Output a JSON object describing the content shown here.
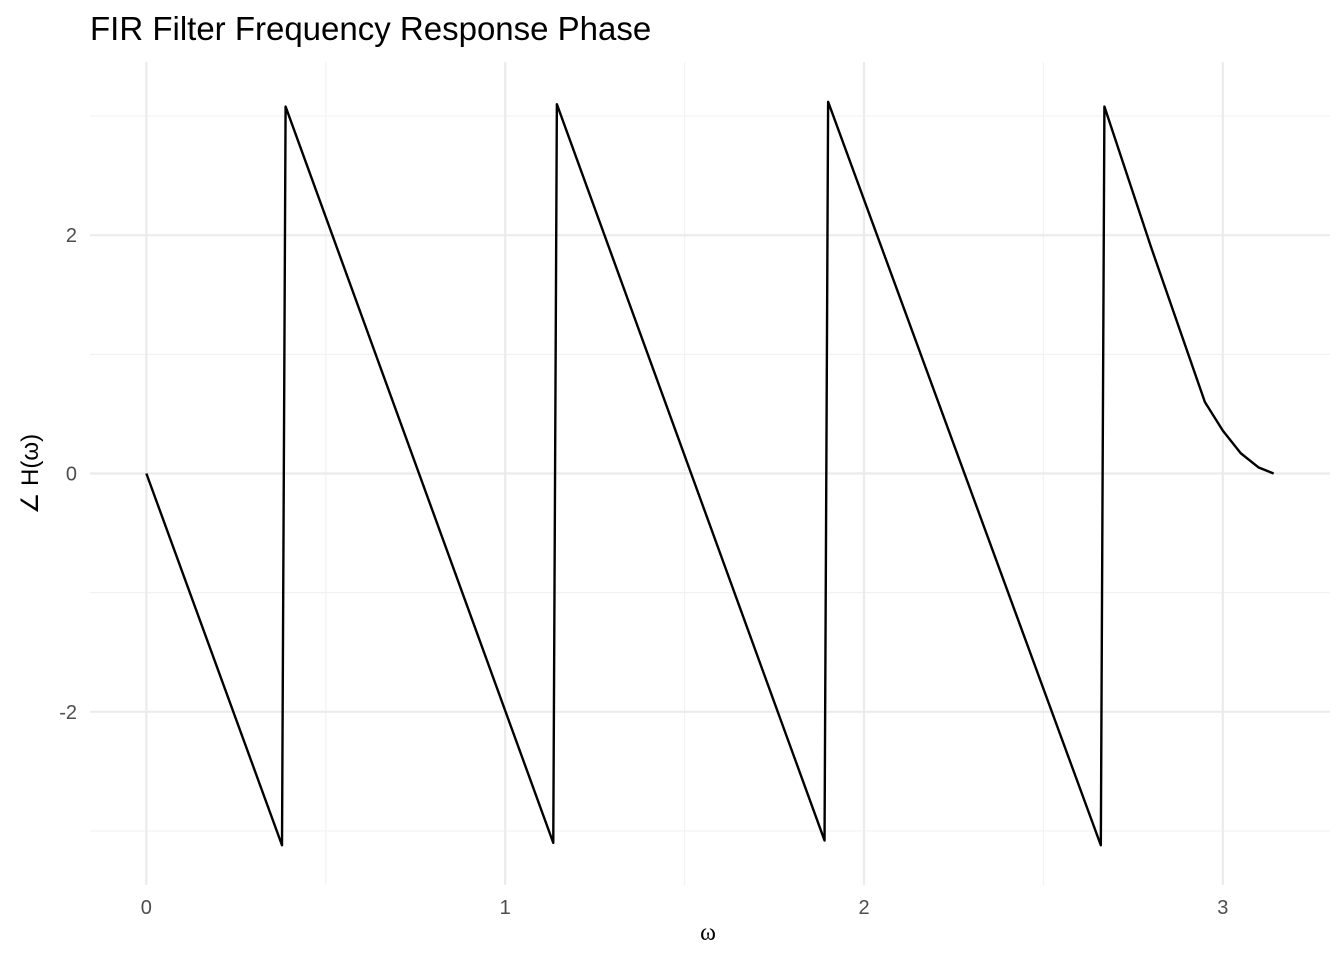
{
  "chart_data": {
    "type": "line",
    "title": "FIR Filter Frequency Response Phase",
    "xlabel": "ω",
    "ylabel": "∠ H(ω)",
    "xlim": [
      -0.1571,
      3.2987
    ],
    "ylim": [
      -3.4538,
      3.4538
    ],
    "x_ticks": [
      0,
      1,
      2,
      3
    ],
    "x_tick_labels": [
      "0",
      "1",
      "2",
      "3"
    ],
    "y_ticks": [
      -2,
      0,
      2
    ],
    "y_tick_labels": [
      "-2",
      "0",
      "2"
    ],
    "grid": true,
    "legend": "none",
    "series": [
      {
        "color": "#000000",
        "x": [
          0,
          0.378,
          0.388,
          1.134,
          1.144,
          1.89,
          1.9,
          2.66,
          2.67,
          2.8,
          2.95,
          3.0,
          3.05,
          3.1,
          3.1416
        ],
        "y": [
          0,
          -3.12,
          3.08,
          -3.1,
          3.1,
          -3.08,
          3.12,
          -3.12,
          3.08,
          1.9,
          0.6,
          0.36,
          0.17,
          0.05,
          0
        ]
      }
    ]
  }
}
